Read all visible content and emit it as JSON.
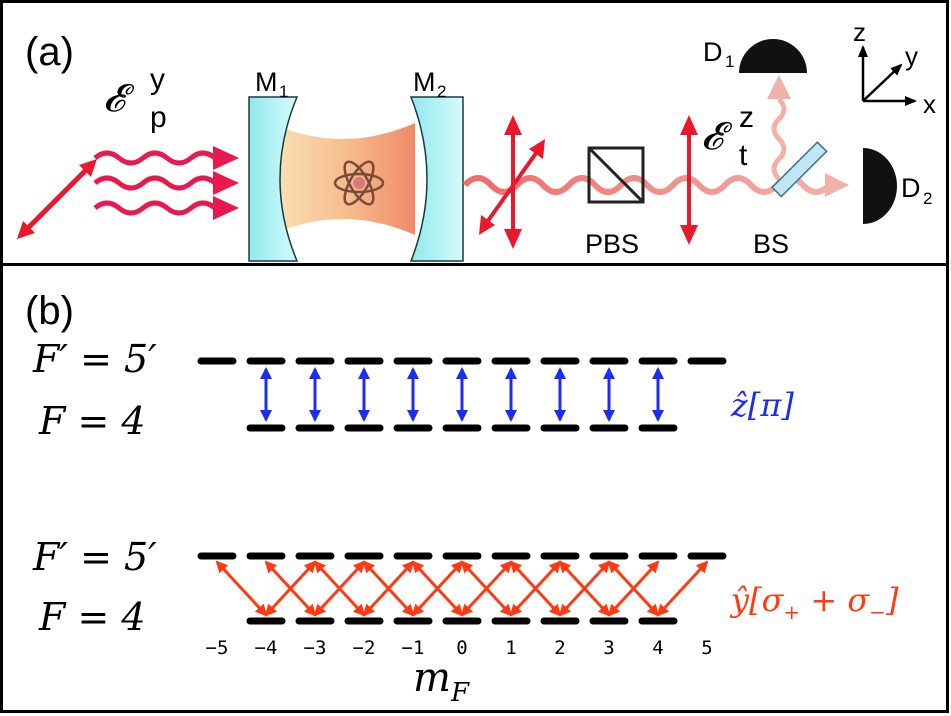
{
  "panel_a": {
    "label": "(a)",
    "pump_symbol": "𝓔",
    "pump_sup": "y",
    "pump_sub": "p",
    "mirror1_main": "M",
    "mirror1_sub": "1",
    "mirror2_main": "M",
    "mirror2_sub": "2",
    "trans_symbol": "𝓔",
    "trans_sup": "z",
    "trans_sub": "t",
    "pbs_label": "PBS",
    "bs_label": "BS",
    "d1_main": "D",
    "d1_sub": "1",
    "d2_main": "D",
    "d2_sub": "2",
    "axis_z": "z",
    "axis_y": "y",
    "axis_x": "x"
  },
  "panel_b": {
    "label": "(b)",
    "upper_label": "F′ = 5′",
    "lower_label": "F = 4",
    "pi_label": "ẑ[π]",
    "sigma_label_main": "ŷ[σ",
    "sigma_sub_plus": "+",
    "sigma_plus_sign": " + σ",
    "sigma_sub_minus": "−",
    "sigma_close": "]",
    "mf_ticks": [
      "−5",
      "−4",
      "−3",
      "−2",
      "−1",
      "0",
      "1",
      "2",
      "3",
      "4",
      "5"
    ],
    "mf_label_main": "m",
    "mf_label_sub": "F",
    "upper_mf": [
      -5,
      -4,
      -3,
      -2,
      -1,
      0,
      1,
      2,
      3,
      4,
      5
    ],
    "lower_mf": [
      -4,
      -3,
      -2,
      -1,
      0,
      1,
      2,
      3,
      4
    ],
    "pi_transitions_mf": [
      -4,
      -3,
      -2,
      -1,
      0,
      1,
      2,
      3,
      4
    ],
    "sigma_transitions": [
      {
        "from": -4,
        "to": -5
      },
      {
        "from": -4,
        "to": -3
      },
      {
        "from": -3,
        "to": -4
      },
      {
        "from": -3,
        "to": -2
      },
      {
        "from": -2,
        "to": -3
      },
      {
        "from": -2,
        "to": -1
      },
      {
        "from": -1,
        "to": -2
      },
      {
        "from": -1,
        "to": 0
      },
      {
        "from": 0,
        "to": -1
      },
      {
        "from": 0,
        "to": 1
      },
      {
        "from": 1,
        "to": 0
      },
      {
        "from": 1,
        "to": 2
      },
      {
        "from": 2,
        "to": 1
      },
      {
        "from": 2,
        "to": 3
      },
      {
        "from": 3,
        "to": 2
      },
      {
        "from": 3,
        "to": 4
      },
      {
        "from": 4,
        "to": 3
      },
      {
        "from": 4,
        "to": 5
      }
    ],
    "colors": {
      "pi": "#1e2cf0",
      "sigma": "#ff3a12",
      "level": "#000000"
    }
  }
}
